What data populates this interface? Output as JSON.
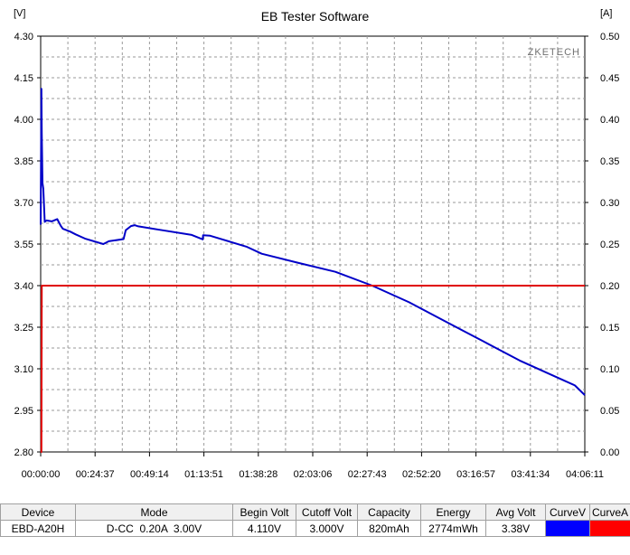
{
  "window": {
    "title": "EB Tester Software",
    "left_unit": "[V]",
    "right_unit": "[A]",
    "watermark": "ZKETECH"
  },
  "chart_data": {
    "type": "line",
    "title": "EB Tester Software",
    "xlabel": "",
    "ylabel": "[V]",
    "y2label": "[A]",
    "grid": true,
    "x_ticks": [
      "00:00:00",
      "00:24:37",
      "00:49:14",
      "01:13:51",
      "01:38:28",
      "02:03:06",
      "02:27:43",
      "02:52:20",
      "03:16:57",
      "03:41:34",
      "04:06:11"
    ],
    "x_range_seconds": [
      0,
      14771
    ],
    "y_ticks": [
      "2.80",
      "2.95",
      "3.10",
      "3.25",
      "3.40",
      "3.55",
      "3.70",
      "3.85",
      "4.00",
      "4.15",
      "4.30"
    ],
    "ylim": [
      2.8,
      4.3
    ],
    "y2_ticks": [
      "0.00",
      "0.05",
      "0.10",
      "0.15",
      "0.20",
      "0.25",
      "0.30",
      "0.35",
      "0.40",
      "0.45",
      "0.50"
    ],
    "y2lim": [
      0,
      0.5
    ],
    "series": [
      {
        "name": "CurveV",
        "axis": "left",
        "color": "#0000c8",
        "x": [
          0,
          20,
          30,
          50,
          70,
          110,
          160,
          300,
          450,
          550,
          600,
          800,
          950,
          1200,
          1700,
          1850,
          2250,
          2310,
          2450,
          2550,
          2650,
          3300,
          4100,
          4400,
          4410,
          4600,
          5600,
          6000,
          7000,
          8000,
          9000,
          10000,
          11000,
          12000,
          13000,
          14000,
          14500,
          14771
        ],
        "y": [
          3.62,
          4.11,
          3.95,
          3.77,
          3.75,
          3.63,
          3.635,
          3.632,
          3.64,
          3.615,
          3.605,
          3.595,
          3.585,
          3.57,
          3.55,
          3.56,
          3.568,
          3.6,
          3.615,
          3.618,
          3.614,
          3.6,
          3.583,
          3.567,
          3.582,
          3.58,
          3.54,
          3.515,
          3.482,
          3.45,
          3.4,
          3.34,
          3.27,
          3.2,
          3.13,
          3.07,
          3.04,
          3.005
        ]
      },
      {
        "name": "CurveA",
        "axis": "right",
        "color": "#e00000",
        "x": [
          0,
          20,
          30,
          14771
        ],
        "y": [
          0.0,
          0.0,
          0.2,
          0.2
        ]
      }
    ]
  },
  "results_table": {
    "headers": [
      "Device",
      "Mode",
      "Begin Volt",
      "Cutoff Volt",
      "Capacity",
      "Energy",
      "Avg Volt",
      "CurveV",
      "CurveA"
    ],
    "row": {
      "device": "EBD-A20H",
      "mode": "D-CC  0.20A  3.00V",
      "begin_volt": "4.110V",
      "cutoff_volt": "3.000V",
      "capacity": "820mAh",
      "energy": "2774mWh",
      "avg_volt": "3.38V",
      "curve_v_color": "#0000ff",
      "curve_a_color": "#ff0000"
    }
  }
}
